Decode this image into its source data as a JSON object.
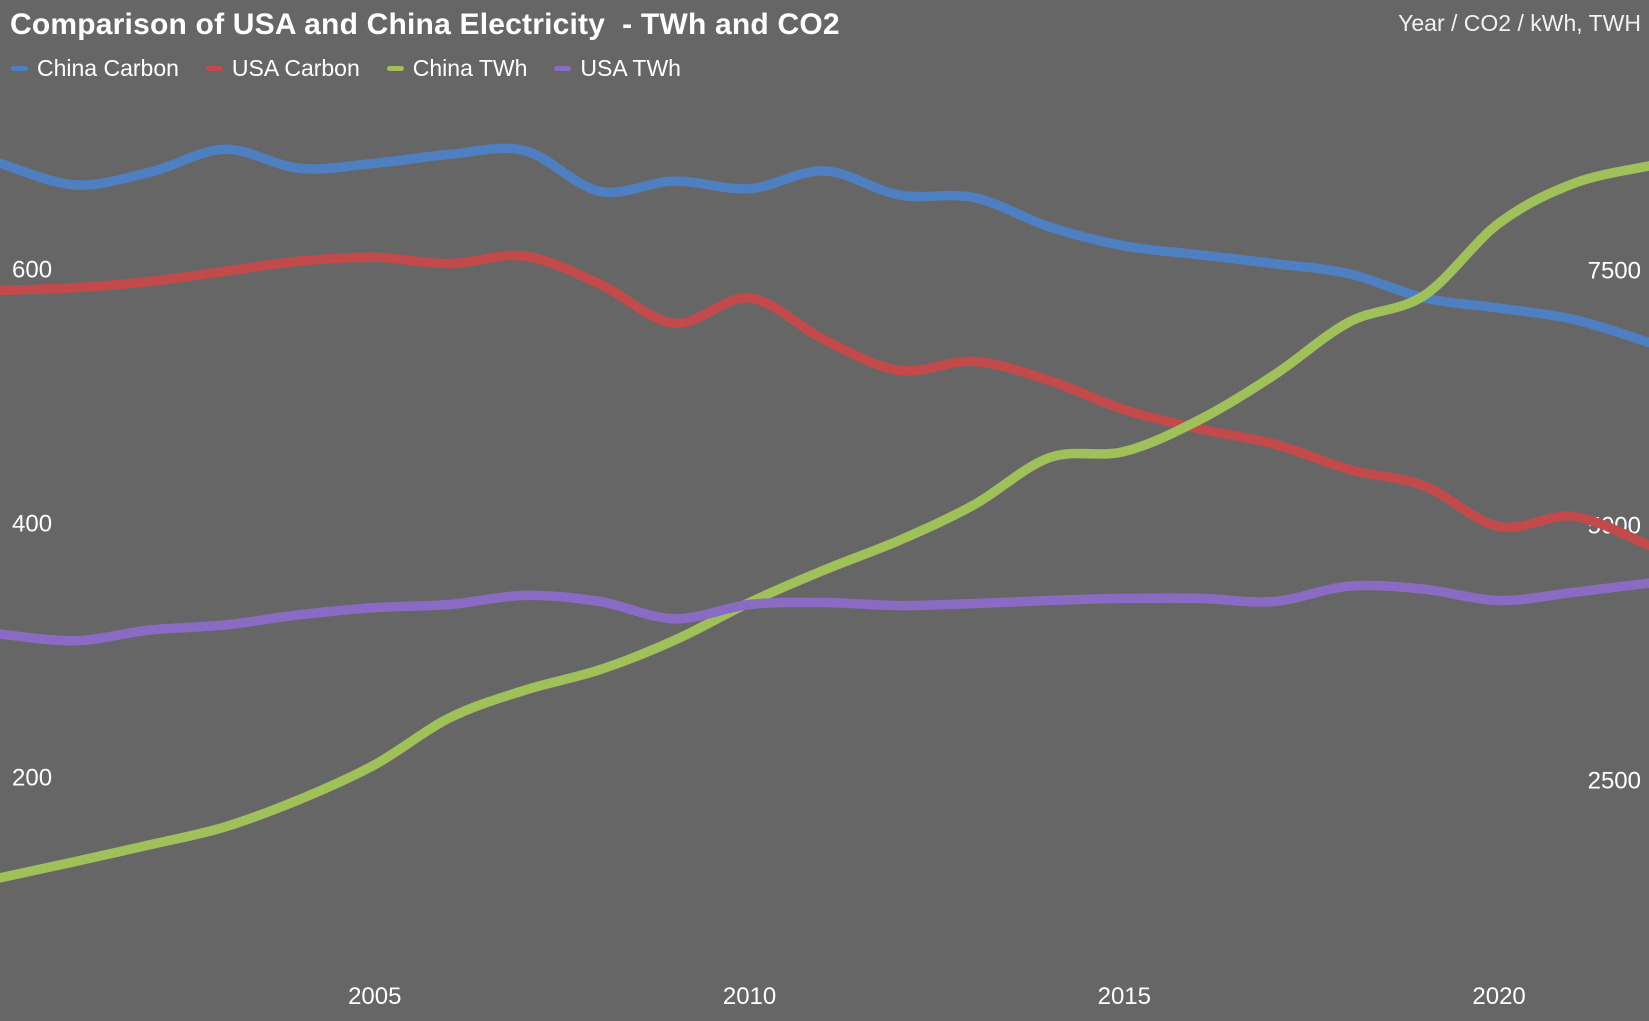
{
  "title": "Comparison of USA and China Electricity  - TWh and CO2",
  "axis_note": "Year / CO2 / kWh, TWH",
  "colors": {
    "background": "#666666",
    "text": "#ffffff",
    "china_carbon": "#4E7FC1",
    "usa_carbon": "#C34A4A",
    "china_twh": "#A0C05A",
    "usa_twh": "#8A6BC3"
  },
  "legend": {
    "items": [
      {
        "label": "China Carbon"
      },
      {
        "label": "USA Carbon"
      },
      {
        "label": "China TWh"
      },
      {
        "label": "USA TWh"
      }
    ]
  },
  "chart_data": {
    "type": "line",
    "title": "Comparison of USA and China Electricity  - TWh and CO2",
    "xlabel": "Year",
    "xlim": [
      2000,
      2022
    ],
    "grid": false,
    "legend_position": "top-left",
    "x_ticks": [
      2005,
      2010,
      2015,
      2020
    ],
    "left_axis": {
      "ticks": [
        600,
        400,
        200
      ],
      "unit": "CO2 g/kWh"
    },
    "right_axis": {
      "ticks": [
        7500,
        5000,
        2500
      ],
      "unit": "TWh"
    },
    "x": [
      2000,
      2001,
      2002,
      2003,
      2004,
      2005,
      2006,
      2007,
      2008,
      2009,
      2010,
      2011,
      2012,
      2013,
      2014,
      2015,
      2016,
      2017,
      2018,
      2019,
      2020,
      2021,
      2022
    ],
    "series": [
      {
        "name": "China Carbon",
        "axis": "left",
        "color": "#4E7FC1",
        "values": [
          684,
          667,
          677,
          695,
          680,
          684,
          691,
          694,
          662,
          670,
          664,
          678,
          659,
          657,
          634,
          619,
          612,
          605,
          597,
          578,
          570,
          561,
          543
        ]
      },
      {
        "name": "USA Carbon",
        "axis": "left",
        "color": "#C34A4A",
        "values": [
          584,
          586,
          591,
          599,
          607,
          610,
          605,
          611,
          589,
          558,
          578,
          545,
          521,
          528,
          513,
          490,
          475,
          463,
          443,
          430,
          398,
          406,
          383
        ]
      },
      {
        "name": "China TWh",
        "axis": "right",
        "color": "#A0C05A",
        "values": [
          1550,
          1710,
          1875,
          2050,
          2320,
          2660,
          3120,
          3390,
          3590,
          3880,
          4250,
          4570,
          4860,
          5210,
          5670,
          5730,
          6040,
          6480,
          7000,
          7260,
          7970,
          8360,
          8530
        ]
      },
      {
        "name": "USA TWh",
        "axis": "right",
        "color": "#8A6BC3",
        "values": [
          3940,
          3875,
          3980,
          4030,
          4130,
          4200,
          4230,
          4320,
          4260,
          4090,
          4230,
          4250,
          4220,
          4240,
          4270,
          4290,
          4290,
          4260,
          4410,
          4380,
          4270,
          4350,
          4440
        ]
      }
    ]
  }
}
